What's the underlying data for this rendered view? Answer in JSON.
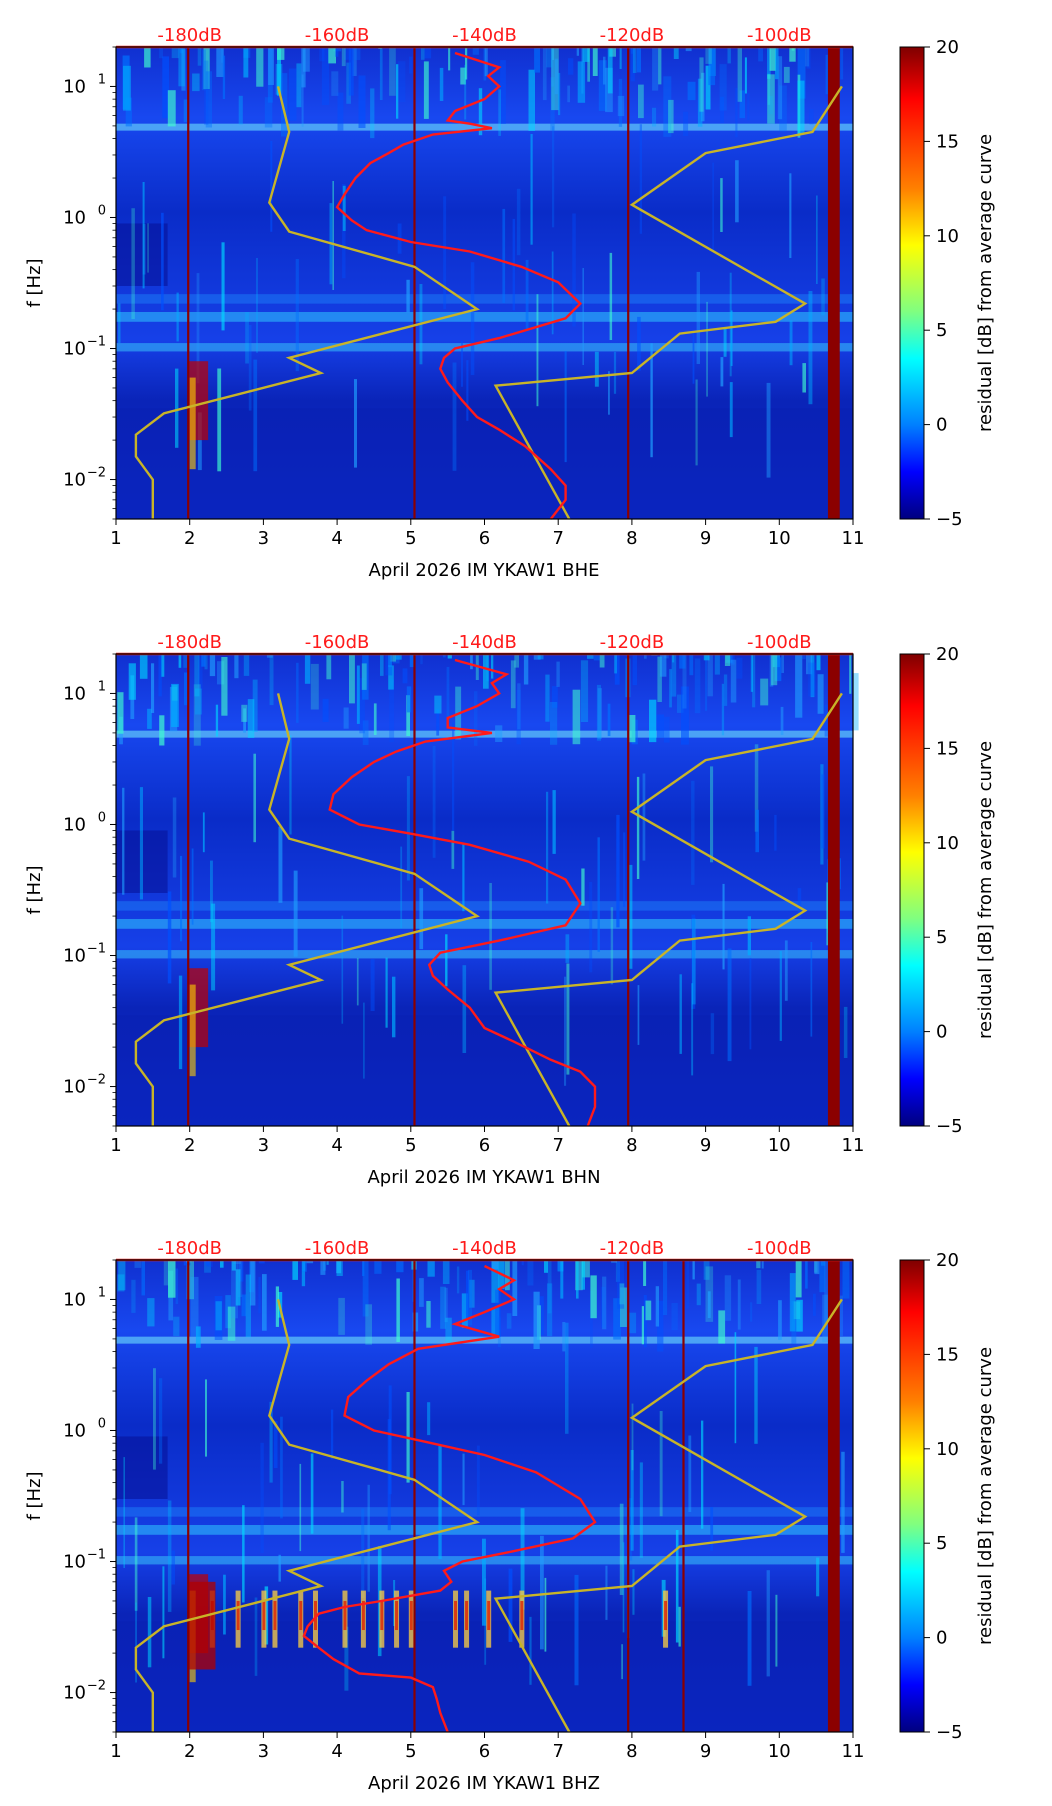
{
  "colors": {
    "noise_model": "#c8b428",
    "psd_curve": "#ff1a1a",
    "db_label": "#ff1a1a",
    "gap_marker": "#8b0000",
    "background_low": "#00007f",
    "background_mid": "#0044ff"
  },
  "colorbar": {
    "label": "residual [dB] from average curve",
    "ticks": [
      "20",
      "15",
      "10",
      "5",
      "0",
      "−5"
    ],
    "stops": [
      "#7f0000",
      "#ff0000",
      "#ff8000",
      "#ffff00",
      "#80ff80",
      "#00ffff",
      "#0080ff",
      "#0000ff",
      "#00007f"
    ]
  },
  "chart_data": [
    {
      "type": "heatmap",
      "title": "",
      "xlabel": "April 2026 IM YKAW1  BHE",
      "ylabel": "f [Hz]",
      "xlim": [
        1,
        11
      ],
      "ylim": [
        0.005,
        20
      ],
      "yscale": "log",
      "x_ticks": [
        "1",
        "2",
        "3",
        "4",
        "5",
        "6",
        "7",
        "8",
        "9",
        "10",
        "11"
      ],
      "y_ticks": [
        {
          "value": 10,
          "exp": "1"
        },
        {
          "value": 1,
          "exp": "0"
        },
        {
          "value": 0.1,
          "exp": "−1"
        },
        {
          "value": 0.01,
          "exp": "−2"
        }
      ],
      "db_labels": [
        "-180dB",
        "-160dB",
        "-140dB",
        "-120dB",
        "-100dB"
      ],
      "db_label_x": [
        2.0,
        4.0,
        6.0,
        8.0,
        10.0
      ],
      "colorbar_range": [
        -5,
        20
      ],
      "vertical_markers_day": [
        1.98,
        5.05,
        7.95,
        10.75
      ],
      "series": [
        {
          "name": "noise-model",
          "points": [
            [
              3.2,
              10
            ],
            [
              3.35,
              4.5
            ],
            [
              3.08,
              1.3
            ],
            [
              3.35,
              0.78
            ],
            [
              5.05,
              0.42
            ],
            [
              5.9,
              0.2
            ],
            [
              3.35,
              0.085
            ],
            [
              3.78,
              0.065
            ],
            [
              1.65,
              0.032
            ],
            [
              1.27,
              0.022
            ],
            [
              1.27,
              0.015
            ],
            [
              1.5,
              0.01
            ],
            [
              1.5,
              0.005
            ]
          ]
        },
        {
          "name": "noise-model-upper",
          "points": [
            [
              10.85,
              10
            ],
            [
              10.45,
              4.5
            ],
            [
              9.0,
              3.1
            ],
            [
              8.0,
              1.25
            ],
            [
              10.35,
              0.22
            ],
            [
              9.95,
              0.16
            ],
            [
              8.65,
              0.13
            ],
            [
              8.0,
              0.065
            ],
            [
              6.15,
              0.052
            ],
            [
              7.15,
              0.005
            ]
          ]
        },
        {
          "name": "psd-curve",
          "points": [
            [
              5.6,
              18
            ],
            [
              6.2,
              14
            ],
            [
              6.05,
              12
            ],
            [
              6.2,
              10
            ],
            [
              6.0,
              8
            ],
            [
              5.6,
              6.5
            ],
            [
              5.5,
              5.5
            ],
            [
              5.8,
              5.2
            ],
            [
              6.1,
              4.8
            ],
            [
              5.3,
              4.3
            ],
            [
              4.9,
              3.6
            ],
            [
              4.7,
              3.1
            ],
            [
              4.45,
              2.6
            ],
            [
              4.25,
              2.0
            ],
            [
              4.1,
              1.5
            ],
            [
              4.0,
              1.2
            ],
            [
              4.2,
              0.95
            ],
            [
              4.4,
              0.8
            ],
            [
              5.0,
              0.65
            ],
            [
              5.8,
              0.55
            ],
            [
              6.5,
              0.42
            ],
            [
              7.0,
              0.32
            ],
            [
              7.3,
              0.22
            ],
            [
              7.1,
              0.17
            ],
            [
              6.2,
              0.12
            ],
            [
              5.6,
              0.1
            ],
            [
              5.45,
              0.085
            ],
            [
              5.4,
              0.07
            ],
            [
              5.5,
              0.055
            ],
            [
              5.7,
              0.04
            ],
            [
              5.9,
              0.03
            ],
            [
              6.2,
              0.024
            ],
            [
              6.55,
              0.018
            ],
            [
              6.9,
              0.012
            ],
            [
              7.1,
              0.009
            ],
            [
              7.1,
              0.007
            ],
            [
              6.9,
              0.005
            ]
          ]
        }
      ]
    },
    {
      "type": "heatmap",
      "title": "",
      "xlabel": "April 2026 IM YKAW1  BHN",
      "ylabel": "f [Hz]",
      "xlim": [
        1,
        11
      ],
      "ylim": [
        0.005,
        20
      ],
      "yscale": "log",
      "x_ticks": [
        "1",
        "2",
        "3",
        "4",
        "5",
        "6",
        "7",
        "8",
        "9",
        "10",
        "11"
      ],
      "y_ticks": [
        {
          "value": 10,
          "exp": "1"
        },
        {
          "value": 1,
          "exp": "0"
        },
        {
          "value": 0.1,
          "exp": "−1"
        },
        {
          "value": 0.01,
          "exp": "−2"
        }
      ],
      "db_labels": [
        "-180dB",
        "-160dB",
        "-140dB",
        "-120dB",
        "-100dB"
      ],
      "db_label_x": [
        2.0,
        4.0,
        6.0,
        8.0,
        10.0
      ],
      "colorbar_range": [
        -5,
        20
      ],
      "vertical_markers_day": [
        1.98,
        5.05,
        7.95,
        10.75
      ],
      "series": [
        {
          "name": "noise-model",
          "points": [
            [
              3.2,
              10
            ],
            [
              3.35,
              4.5
            ],
            [
              3.08,
              1.3
            ],
            [
              3.35,
              0.78
            ],
            [
              5.05,
              0.42
            ],
            [
              5.9,
              0.2
            ],
            [
              3.35,
              0.085
            ],
            [
              3.78,
              0.065
            ],
            [
              1.65,
              0.032
            ],
            [
              1.27,
              0.022
            ],
            [
              1.27,
              0.015
            ],
            [
              1.5,
              0.01
            ],
            [
              1.5,
              0.005
            ]
          ]
        },
        {
          "name": "noise-model-upper",
          "points": [
            [
              10.85,
              10
            ],
            [
              10.45,
              4.5
            ],
            [
              9.0,
              3.1
            ],
            [
              8.0,
              1.25
            ],
            [
              10.35,
              0.22
            ],
            [
              9.95,
              0.16
            ],
            [
              8.65,
              0.13
            ],
            [
              8.0,
              0.065
            ],
            [
              6.15,
              0.052
            ],
            [
              7.15,
              0.005
            ]
          ]
        },
        {
          "name": "psd-curve",
          "points": [
            [
              5.6,
              18
            ],
            [
              6.3,
              14
            ],
            [
              6.1,
              12
            ],
            [
              6.2,
              10
            ],
            [
              5.9,
              8
            ],
            [
              5.5,
              6.5
            ],
            [
              5.5,
              5.5
            ],
            [
              6.1,
              5.0
            ],
            [
              5.2,
              4.3
            ],
            [
              4.8,
              3.6
            ],
            [
              4.5,
              3.0
            ],
            [
              4.2,
              2.3
            ],
            [
              3.95,
              1.7
            ],
            [
              3.9,
              1.3
            ],
            [
              4.3,
              1.0
            ],
            [
              5.0,
              0.85
            ],
            [
              5.8,
              0.7
            ],
            [
              6.6,
              0.52
            ],
            [
              7.1,
              0.38
            ],
            [
              7.3,
              0.25
            ],
            [
              7.1,
              0.17
            ],
            [
              6.2,
              0.13
            ],
            [
              5.4,
              0.105
            ],
            [
              5.25,
              0.085
            ],
            [
              5.3,
              0.07
            ],
            [
              5.5,
              0.055
            ],
            [
              5.8,
              0.04
            ],
            [
              6.0,
              0.028
            ],
            [
              6.4,
              0.022
            ],
            [
              6.9,
              0.016
            ],
            [
              7.3,
              0.013
            ],
            [
              7.5,
              0.01
            ],
            [
              7.5,
              0.007
            ],
            [
              7.4,
              0.005
            ]
          ]
        }
      ]
    },
    {
      "type": "heatmap",
      "title": "",
      "xlabel": "April 2026 IM YKAW1  BHZ",
      "ylabel": "f [Hz]",
      "xlim": [
        1,
        11
      ],
      "ylim": [
        0.005,
        20
      ],
      "yscale": "log",
      "x_ticks": [
        "1",
        "2",
        "3",
        "4",
        "5",
        "6",
        "7",
        "8",
        "9",
        "10",
        "11"
      ],
      "y_ticks": [
        {
          "value": 10,
          "exp": "1"
        },
        {
          "value": 1,
          "exp": "0"
        },
        {
          "value": 0.1,
          "exp": "−1"
        },
        {
          "value": 0.01,
          "exp": "−2"
        }
      ],
      "db_labels": [
        "-180dB",
        "-160dB",
        "-140dB",
        "-120dB",
        "-100dB"
      ],
      "db_label_x": [
        2.0,
        4.0,
        6.0,
        8.0,
        10.0
      ],
      "colorbar_range": [
        -5,
        20
      ],
      "vertical_markers_day": [
        1.98,
        5.05,
        7.95,
        8.7,
        10.75
      ],
      "series": [
        {
          "name": "noise-model",
          "points": [
            [
              3.2,
              10
            ],
            [
              3.35,
              4.5
            ],
            [
              3.08,
              1.3
            ],
            [
              3.35,
              0.78
            ],
            [
              5.05,
              0.42
            ],
            [
              5.9,
              0.2
            ],
            [
              3.35,
              0.085
            ],
            [
              3.78,
              0.065
            ],
            [
              1.65,
              0.032
            ],
            [
              1.27,
              0.022
            ],
            [
              1.27,
              0.015
            ],
            [
              1.5,
              0.01
            ],
            [
              1.5,
              0.005
            ]
          ]
        },
        {
          "name": "noise-model-upper",
          "points": [
            [
              10.85,
              10
            ],
            [
              10.45,
              4.5
            ],
            [
              9.0,
              3.1
            ],
            [
              8.0,
              1.25
            ],
            [
              10.35,
              0.22
            ],
            [
              9.95,
              0.16
            ],
            [
              8.65,
              0.13
            ],
            [
              8.0,
              0.065
            ],
            [
              6.15,
              0.052
            ],
            [
              7.15,
              0.005
            ]
          ]
        },
        {
          "name": "psd-curve",
          "points": [
            [
              6.0,
              18
            ],
            [
              6.4,
              14
            ],
            [
              6.2,
              12
            ],
            [
              6.4,
              10
            ],
            [
              6.0,
              8
            ],
            [
              5.6,
              6.5
            ],
            [
              6.2,
              5.2
            ],
            [
              5.1,
              4.2
            ],
            [
              4.7,
              3.2
            ],
            [
              4.4,
              2.4
            ],
            [
              4.15,
              1.8
            ],
            [
              4.1,
              1.3
            ],
            [
              4.5,
              1.0
            ],
            [
              5.2,
              0.82
            ],
            [
              6.0,
              0.65
            ],
            [
              6.7,
              0.48
            ],
            [
              7.3,
              0.3
            ],
            [
              7.5,
              0.2
            ],
            [
              7.2,
              0.15
            ],
            [
              6.4,
              0.12
            ],
            [
              5.7,
              0.1
            ],
            [
              5.45,
              0.085
            ],
            [
              5.55,
              0.07
            ],
            [
              5.4,
              0.06
            ],
            [
              4.6,
              0.05
            ],
            [
              4.1,
              0.045
            ],
            [
              3.75,
              0.04
            ],
            [
              3.6,
              0.032
            ],
            [
              3.55,
              0.027
            ],
            [
              3.75,
              0.022
            ],
            [
              3.95,
              0.018
            ],
            [
              4.3,
              0.014
            ],
            [
              5.0,
              0.013
            ],
            [
              5.3,
              0.011
            ],
            [
              5.35,
              0.009
            ],
            [
              5.4,
              0.007
            ],
            [
              5.5,
              0.005
            ]
          ]
        }
      ]
    }
  ]
}
